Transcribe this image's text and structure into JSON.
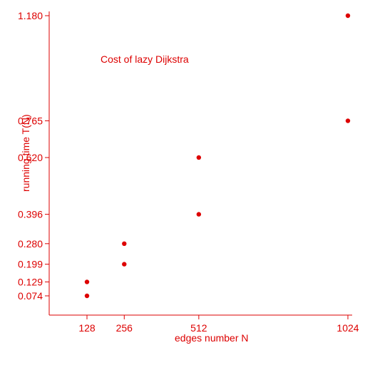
{
  "chart_data": {
    "type": "scatter",
    "title": "Cost of lazy Dijkstra",
    "xlabel": "edges number N",
    "ylabel": "running time T(N)",
    "x_ticks": [
      128,
      256,
      512,
      1024
    ],
    "y_ticks": [
      "0.074",
      "0.129",
      "0.199",
      "0.280",
      "0.396",
      "0.620",
      "0.765",
      "1.180"
    ],
    "xlim": [
      0,
      1024
    ],
    "ylim": [
      0,
      1.18
    ],
    "grid": false,
    "color": "#dd0000",
    "points": [
      {
        "x": 128,
        "y": 0.074
      },
      {
        "x": 128,
        "y": 0.129
      },
      {
        "x": 256,
        "y": 0.199
      },
      {
        "x": 256,
        "y": 0.28
      },
      {
        "x": 512,
        "y": 0.396
      },
      {
        "x": 512,
        "y": 0.62
      },
      {
        "x": 1024,
        "y": 0.765
      },
      {
        "x": 1024,
        "y": 1.18
      }
    ]
  }
}
